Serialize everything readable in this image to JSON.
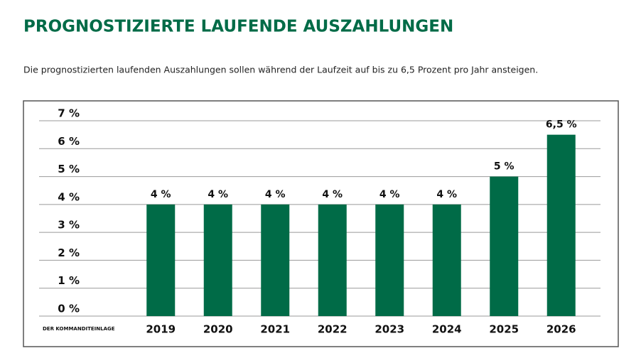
{
  "chart_data": {
    "type": "bar",
    "title": "PROGNOSTIZIERTE LAUFENDE AUSZAHLUNGEN",
    "subtitle": "Die prognostizierten laufenden Auszahlungen sollen während der Laufzeit auf bis zu 6,5 Prozent pro Jahr ansteigen.",
    "xlabel": "DER KOMMANDITEINLAGE",
    "categories": [
      "2019",
      "2020",
      "2021",
      "2022",
      "2023",
      "2024",
      "2025",
      "2026"
    ],
    "values": [
      4,
      4,
      4,
      4,
      4,
      4,
      5,
      6.5
    ],
    "value_labels": [
      "4 %",
      "4 %",
      "4 %",
      "4 %",
      "4 %",
      "4 %",
      "5 %",
      "6,5 %"
    ],
    "color": "#006b47",
    "ylim": [
      0,
      7
    ],
    "yticks": [
      {
        "value": 0,
        "label": "0 %"
      },
      {
        "value": 1,
        "label": "1 %"
      },
      {
        "value": 2,
        "label": "2 %"
      },
      {
        "value": 3,
        "label": "3 %"
      },
      {
        "value": 4,
        "label": "4 %"
      },
      {
        "value": 5,
        "label": "5 %"
      },
      {
        "value": 6,
        "label": "6 %"
      },
      {
        "value": 7,
        "label": "7 %"
      }
    ],
    "grid": true
  }
}
